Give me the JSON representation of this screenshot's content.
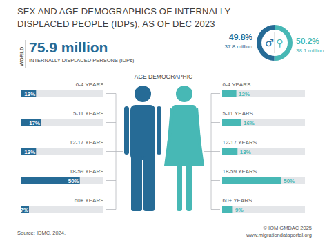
{
  "title": "SEX AND AGE DEMOGRAPHICS OF INTERNALLY DISPLACED PEOPLE (IDPs), AS OF DEC 2023",
  "world": {
    "label": "WORLD",
    "value": 75.9,
    "value_label": "75.9 million",
    "description": "INTERNALLY DISPLACED PERSONS (IDPs)"
  },
  "age_title": "AGE DEMOGRAPHIC",
  "source": "Source: IDMC, 2024.",
  "credit": [
    "© IOM GMDAC 2025",
    "www.migrationdataportal.org"
  ],
  "chart_data": [
    {
      "type": "pie",
      "categories": [
        "♂",
        "♀"
      ],
      "values": [
        49.8,
        50.2
      ],
      "value_labels": [
        "49.8%",
        "50.2%"
      ],
      "counts": [
        37.8,
        38.1
      ],
      "count_labels": [
        "37.8 million",
        "38.1 million"
      ],
      "colors": [
        "#266b96",
        "#47b8b5"
      ],
      "data_labels": true
    },
    {
      "type": "bar",
      "orientation": "horizontal",
      "categories": [
        "0-4 YEARS",
        "5-11 YEARS",
        "12-17 YEARS",
        "18-59 YEARS",
        "60+ YEARS"
      ],
      "values": [
        13,
        17,
        13,
        50,
        7
      ],
      "value_labels": [
        "13%",
        "17%",
        "13%",
        "50%",
        "7%"
      ],
      "color": "#266b96",
      "xlim": [
        0,
        70
      ],
      "tick_labels": false,
      "data_labels": true
    },
    {
      "type": "bar",
      "orientation": "horizontal",
      "categories": [
        "0-4 YEARS",
        "5-11 YEARS",
        "12-17 YEARS",
        "18-59 YEARS",
        "60+ YEARS"
      ],
      "values": [
        12,
        16,
        13,
        50,
        9
      ],
      "value_labels": [
        "12%",
        "16%",
        "13%",
        "50%",
        "9%"
      ],
      "color": "#47b8b5",
      "xlim": [
        0,
        70
      ],
      "tick_labels": false,
      "data_labels": true
    }
  ]
}
